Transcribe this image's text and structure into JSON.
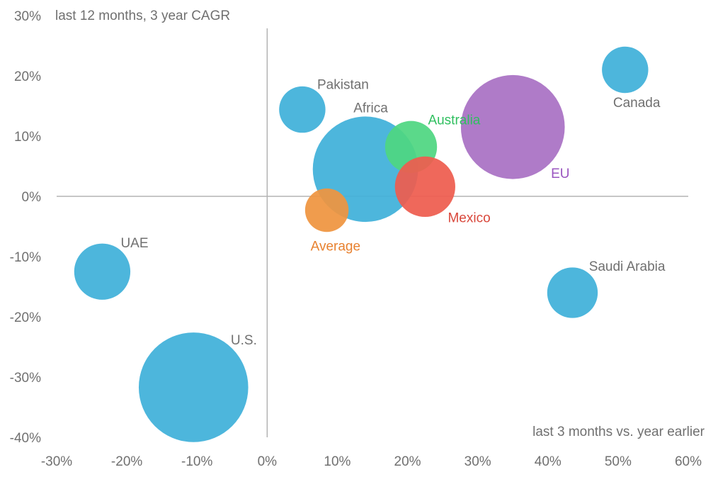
{
  "chart_data": {
    "type": "bubble",
    "ylabel": "last 12 months, 3 year CAGR",
    "xlabel": "last 3 months vs. year earlier",
    "xlim": [
      -30,
      60
    ],
    "ylim": [
      -40,
      30
    ],
    "x_ticks": [
      -30,
      -20,
      -10,
      0,
      10,
      20,
      30,
      40,
      50,
      60
    ],
    "y_ticks": [
      30,
      20,
      10,
      0,
      -10,
      -20,
      -30,
      -40
    ],
    "x_tick_labels": [
      "-30%",
      "-20%",
      "-10%",
      "0%",
      "10%",
      "20%",
      "30%",
      "40%",
      "50%",
      "60%"
    ],
    "y_tick_labels": [
      "30%",
      "20%",
      "10%",
      "0%",
      "-10%",
      "-20%",
      "-30%",
      "-40%"
    ],
    "grid": false,
    "points": [
      {
        "name": "U.S.",
        "x": -10.5,
        "y": -31.7,
        "size": 7.8,
        "color": "#3fb0d9",
        "label_color": "#707070",
        "label_pos": "upper-right"
      },
      {
        "name": "UAE",
        "x": -23.5,
        "y": -12.5,
        "size": 4.0,
        "color": "#3fb0d9",
        "label_color": "#707070",
        "label_pos": "upper-right"
      },
      {
        "name": "Pakistan",
        "x": 5.0,
        "y": 14.4,
        "size": 3.3,
        "color": "#3fb0d9",
        "label_color": "#707070",
        "label_pos": "upper-right"
      },
      {
        "name": "Africa",
        "x": 14.0,
        "y": 4.5,
        "size": 7.5,
        "color": "#3fb0d9",
        "label_color": "#707070",
        "label_pos": "upper-center"
      },
      {
        "name": "Australia",
        "x": 20.5,
        "y": 8.2,
        "size": 3.7,
        "color": "#4fd681",
        "label_color": "#2fbf5f",
        "label_pos": "upper-right"
      },
      {
        "name": "Mexico",
        "x": 22.5,
        "y": 1.6,
        "size": 4.3,
        "color": "#ee5d4f",
        "label_color": "#d9473b",
        "label_pos": "lower-right"
      },
      {
        "name": "Average",
        "x": 8.5,
        "y": -2.3,
        "size": 3.1,
        "color": "#ef9540",
        "label_color": "#e8812f",
        "label_pos": "below"
      },
      {
        "name": "EU",
        "x": 35.0,
        "y": 11.5,
        "size": 7.4,
        "color": "#a971c4",
        "label_color": "#9a55c0",
        "label_pos": "lower-right"
      },
      {
        "name": "Canada",
        "x": 51.0,
        "y": 21.0,
        "size": 3.3,
        "color": "#3fb0d9",
        "label_color": "#707070",
        "label_pos": "below-right"
      },
      {
        "name": "Saudi Arabia",
        "x": 43.5,
        "y": -16.0,
        "size": 3.6,
        "color": "#3fb0d9",
        "label_color": "#707070",
        "label_pos": "upper-right"
      }
    ]
  }
}
